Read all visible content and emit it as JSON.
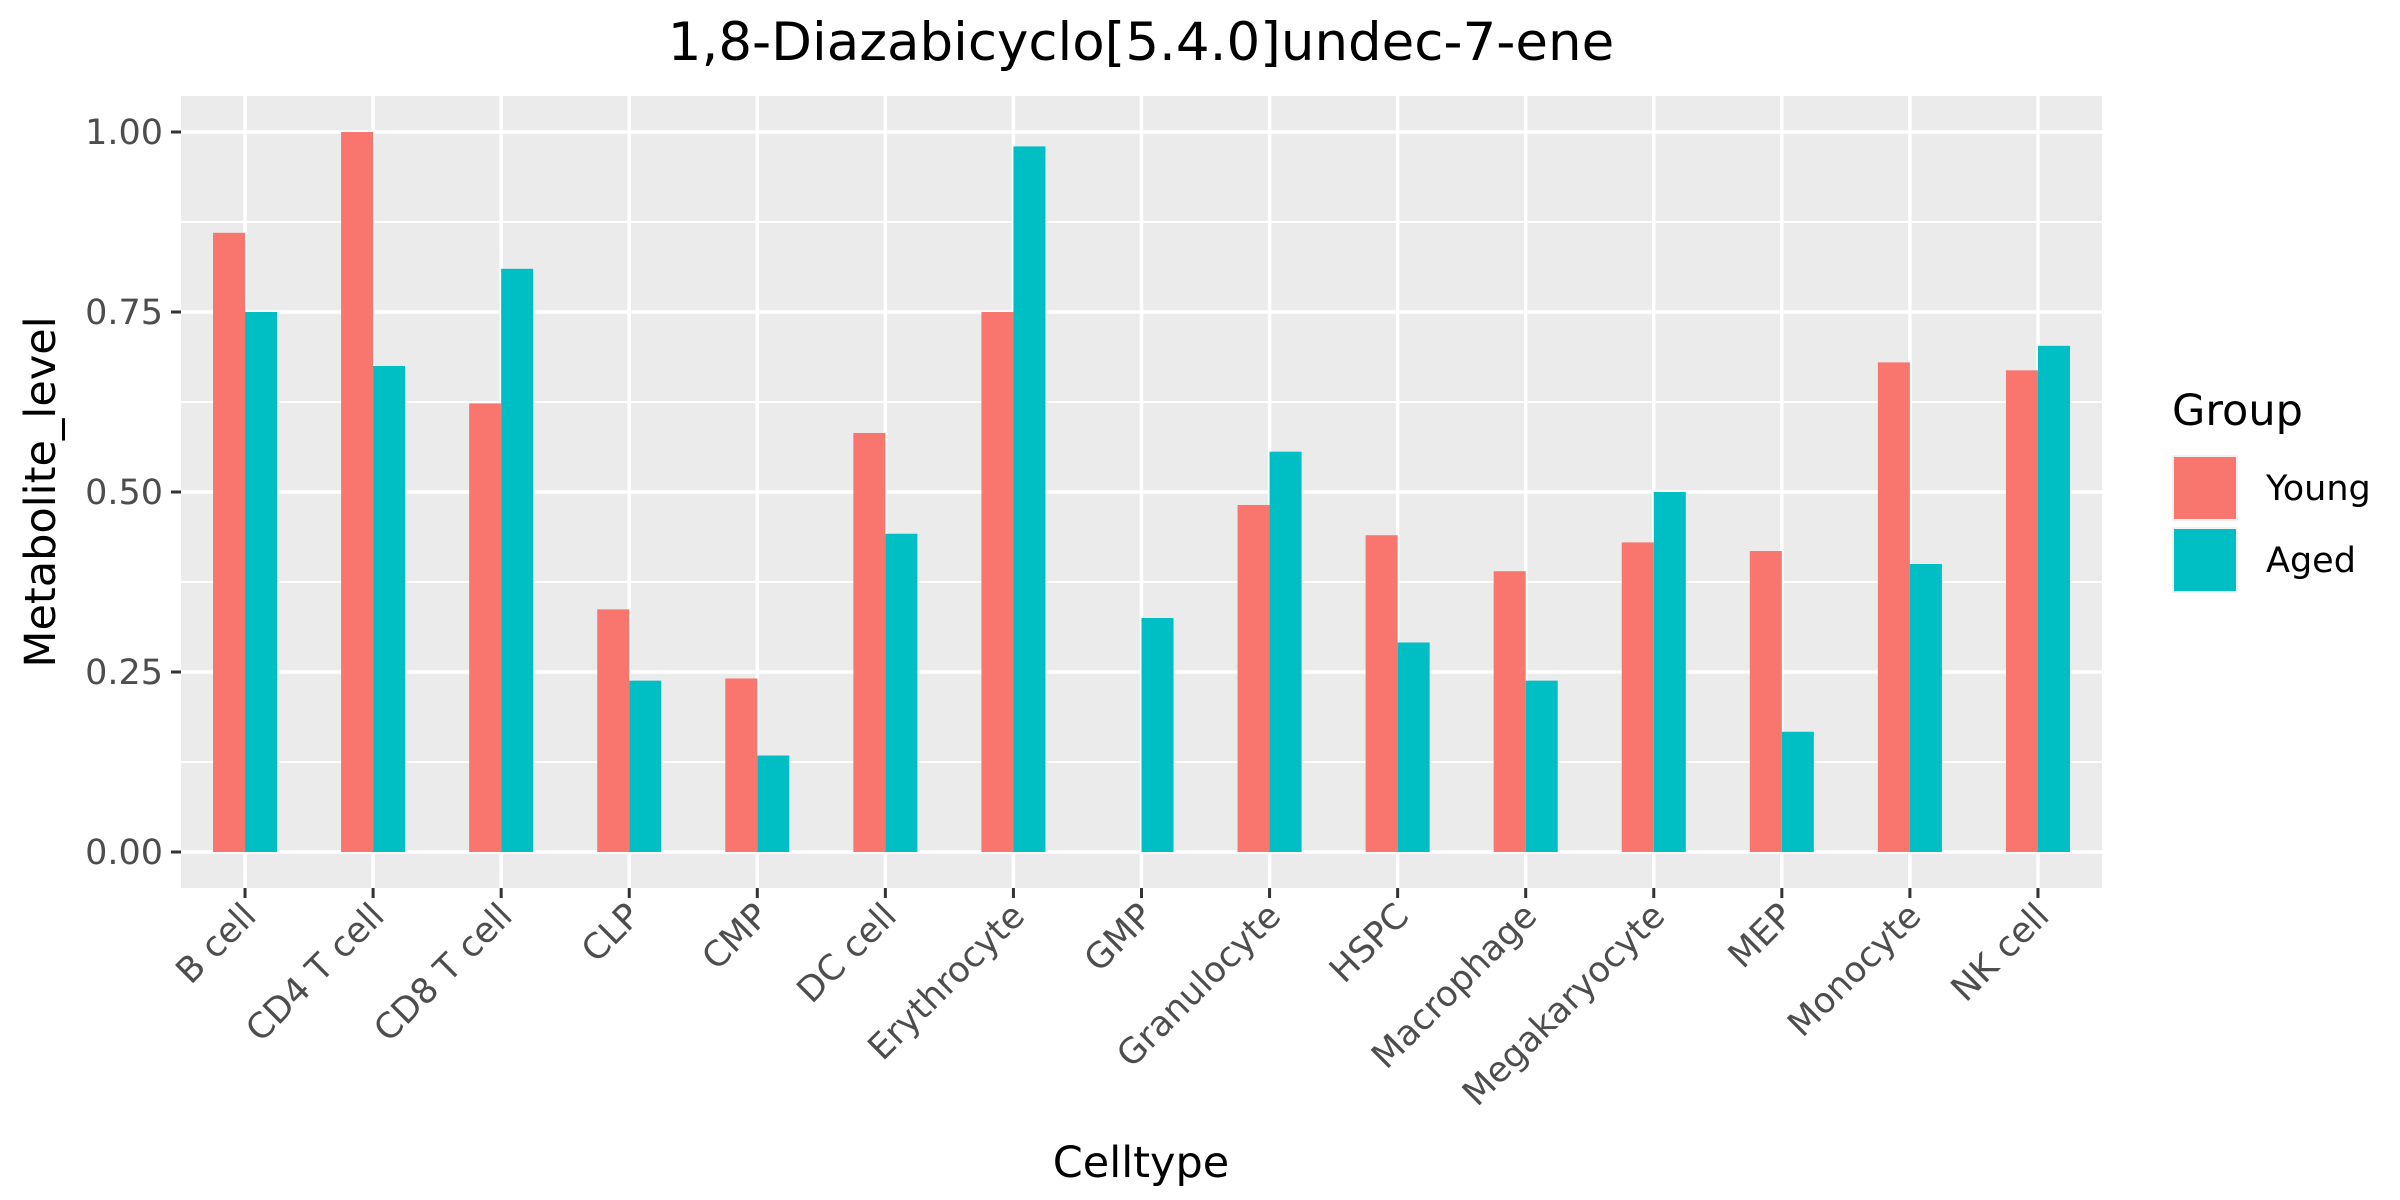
{
  "chart_data": {
    "type": "bar",
    "title": "1,8-Diazabicyclo[5.4.0]undec-7-ene",
    "xlabel": "Celltype",
    "ylabel": "Metabolite_level",
    "categories": [
      "B cell",
      "CD4 T cell",
      "CD8 T cell",
      "CLP",
      "CMP",
      "DC cell",
      "Erythrocyte",
      "GMP",
      "Granulocyte",
      "HSPC",
      "Macrophage",
      "Megakaryocyte",
      "MEP",
      "Monocyte",
      "NK cell"
    ],
    "series": [
      {
        "name": "Young",
        "color": "#F8766D",
        "values": [
          0.86,
          1.0,
          0.623,
          0.337,
          0.241,
          0.582,
          0.75,
          0.0,
          0.482,
          0.44,
          0.39,
          0.43,
          0.418,
          0.68,
          0.669
        ]
      },
      {
        "name": "Aged",
        "color": "#00BFC4",
        "values": [
          0.75,
          0.675,
          0.81,
          0.238,
          0.134,
          0.442,
          0.98,
          0.325,
          0.556,
          0.291,
          0.238,
          0.5,
          0.167,
          0.4,
          0.703
        ]
      }
    ],
    "ylim": [
      -0.05,
      1.05
    ],
    "yticks": [
      0.0,
      0.25,
      0.5,
      0.75,
      1.0
    ],
    "ytick_labels": [
      "0.00",
      "0.25",
      "0.50",
      "0.75",
      "1.00"
    ],
    "grid": true,
    "legend": {
      "title": "Group",
      "position": "right"
    }
  }
}
